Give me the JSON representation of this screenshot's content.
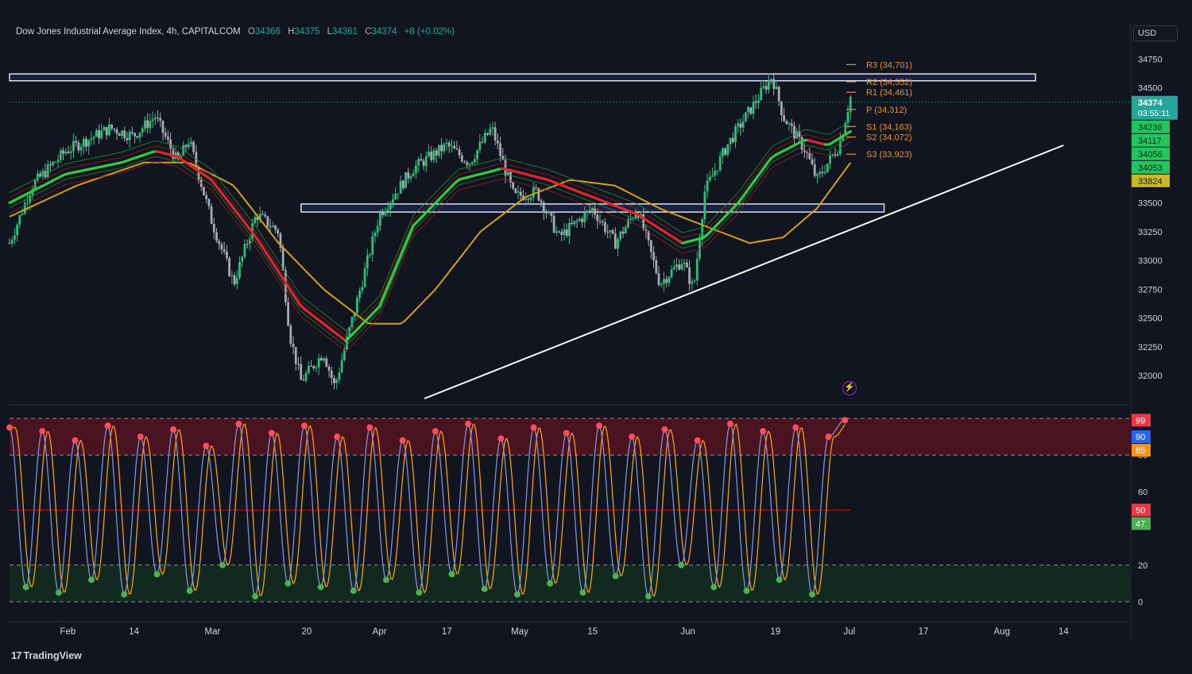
{
  "header": {
    "symbol": "Dow Jones Industrial Average Index, 4h, CAPITALCOM",
    "o_label": "O",
    "o_value": "34366",
    "h_label": "H",
    "h_value": "34375",
    "l_label": "L",
    "l_value": "34361",
    "c_label": "C",
    "c_value": "34374",
    "change": "+8 (+0.02%)"
  },
  "currency": "USD",
  "brand": "TradingView",
  "colors": {
    "background": "#111520",
    "ema_fast_green": "#2ecc40",
    "ema_fast_red": "#e0262c",
    "ema_slow": "#d4a017",
    "pivot": "#e8902a",
    "trendline": "#ffffff",
    "zone": "#1e2a5c",
    "stoch_k": "#7e8fd6",
    "stoch_d": "#f39c12"
  },
  "chart_data": [
    {
      "type": "candlestick",
      "title": "Dow Jones Industrial Average Index, 4h, CAPITALCOM",
      "timeframe": "4h",
      "x_tick_labels": [
        "Feb",
        "14",
        "Mar",
        "20",
        "Apr",
        "17",
        "May",
        "15",
        "Jun",
        "19",
        "Jul",
        "17",
        "Aug",
        "14"
      ],
      "y_tick_labels": [
        "32000",
        "32250",
        "32500",
        "32750",
        "33000",
        "33250",
        "33500",
        "34500",
        "34750"
      ],
      "ylim": [
        31800,
        35000
      ],
      "last_price": "34374",
      "countdown": "03:55:11",
      "price_path": [
        {
          "t": 0,
          "p": 33150
        },
        {
          "t": 0.02,
          "p": 33650
        },
        {
          "t": 0.05,
          "p": 33950
        },
        {
          "t": 0.07,
          "p": 34050
        },
        {
          "t": 0.09,
          "p": 34150
        },
        {
          "t": 0.11,
          "p": 34080
        },
        {
          "t": 0.13,
          "p": 34250
        },
        {
          "t": 0.15,
          "p": 33850
        },
        {
          "t": 0.16,
          "p": 34050
        },
        {
          "t": 0.18,
          "p": 33350
        },
        {
          "t": 0.2,
          "p": 32800
        },
        {
          "t": 0.22,
          "p": 33400
        },
        {
          "t": 0.24,
          "p": 33250
        },
        {
          "t": 0.25,
          "p": 32350
        },
        {
          "t": 0.26,
          "p": 31950
        },
        {
          "t": 0.28,
          "p": 32200
        },
        {
          "t": 0.29,
          "p": 31900
        },
        {
          "t": 0.31,
          "p": 32650
        },
        {
          "t": 0.33,
          "p": 33400
        },
        {
          "t": 0.36,
          "p": 33800
        },
        {
          "t": 0.39,
          "p": 34000
        },
        {
          "t": 0.41,
          "p": 33850
        },
        {
          "t": 0.43,
          "p": 34150
        },
        {
          "t": 0.45,
          "p": 33550
        },
        {
          "t": 0.47,
          "p": 33600
        },
        {
          "t": 0.49,
          "p": 33200
        },
        {
          "t": 0.52,
          "p": 33450
        },
        {
          "t": 0.54,
          "p": 33150
        },
        {
          "t": 0.56,
          "p": 33450
        },
        {
          "t": 0.58,
          "p": 32800
        },
        {
          "t": 0.6,
          "p": 33000
        },
        {
          "t": 0.61,
          "p": 32750
        },
        {
          "t": 0.62,
          "p": 33600
        },
        {
          "t": 0.64,
          "p": 34000
        },
        {
          "t": 0.66,
          "p": 34300
        },
        {
          "t": 0.68,
          "p": 34600
        },
        {
          "t": 0.69,
          "p": 34250
        },
        {
          "t": 0.71,
          "p": 33950
        },
        {
          "t": 0.72,
          "p": 33700
        },
        {
          "t": 0.74,
          "p": 34000
        },
        {
          "t": 0.75,
          "p": 34420
        }
      ],
      "ema_fast_path": [
        {
          "t": 0,
          "p": 33500
        },
        {
          "t": 0.05,
          "p": 33750
        },
        {
          "t": 0.1,
          "p": 33850
        },
        {
          "t": 0.13,
          "p": 33950
        },
        {
          "t": 0.15,
          "p": 33900
        },
        {
          "t": 0.18,
          "p": 33700
        },
        {
          "t": 0.22,
          "p": 33200
        },
        {
          "t": 0.26,
          "p": 32600
        },
        {
          "t": 0.3,
          "p": 32300
        },
        {
          "t": 0.33,
          "p": 32600
        },
        {
          "t": 0.36,
          "p": 33300
        },
        {
          "t": 0.4,
          "p": 33700
        },
        {
          "t": 0.44,
          "p": 33800
        },
        {
          "t": 0.48,
          "p": 33700
        },
        {
          "t": 0.52,
          "p": 33550
        },
        {
          "t": 0.56,
          "p": 33400
        },
        {
          "t": 0.6,
          "p": 33150
        },
        {
          "t": 0.62,
          "p": 33200
        },
        {
          "t": 0.65,
          "p": 33500
        },
        {
          "t": 0.68,
          "p": 33900
        },
        {
          "t": 0.71,
          "p": 34050
        },
        {
          "t": 0.73,
          "p": 34000
        },
        {
          "t": 0.75,
          "p": 34120
        }
      ],
      "ema_slow_path": [
        {
          "t": 0,
          "p": 33380
        },
        {
          "t": 0.06,
          "p": 33650
        },
        {
          "t": 0.12,
          "p": 33850
        },
        {
          "t": 0.16,
          "p": 33850
        },
        {
          "t": 0.2,
          "p": 33650
        },
        {
          "t": 0.24,
          "p": 33150
        },
        {
          "t": 0.28,
          "p": 32750
        },
        {
          "t": 0.32,
          "p": 32450
        },
        {
          "t": 0.35,
          "p": 32450
        },
        {
          "t": 0.38,
          "p": 32750
        },
        {
          "t": 0.42,
          "p": 33250
        },
        {
          "t": 0.46,
          "p": 33550
        },
        {
          "t": 0.5,
          "p": 33700
        },
        {
          "t": 0.54,
          "p": 33650
        },
        {
          "t": 0.58,
          "p": 33450
        },
        {
          "t": 0.62,
          "p": 33300
        },
        {
          "t": 0.66,
          "p": 33150
        },
        {
          "t": 0.69,
          "p": 33200
        },
        {
          "t": 0.72,
          "p": 33450
        },
        {
          "t": 0.75,
          "p": 33850
        }
      ],
      "trendline": {
        "from": {
          "t": 0.37,
          "p": 31800
        },
        "to": {
          "t": 0.94,
          "p": 34000
        }
      },
      "zones": [
        {
          "name": "resistance",
          "from_t": 0,
          "to_t": 0.915,
          "top": 34620,
          "bottom": 34560
        },
        {
          "name": "support",
          "from_t": 0.26,
          "to_t": 0.78,
          "top": 33490,
          "bottom": 33420
        }
      ],
      "pivots": [
        {
          "label": "R3 (34,701)",
          "value": 34701
        },
        {
          "label": "R2 (34,552)",
          "value": 34552
        },
        {
          "label": "R1 (34,461)",
          "value": 34461
        },
        {
          "label": "P (34,312)",
          "value": 34312
        },
        {
          "label": "S1 (34,163)",
          "value": 34163
        },
        {
          "label": "S2 (34,072)",
          "value": 34072
        },
        {
          "label": "S3 (33,923)",
          "value": 33923
        }
      ],
      "price_badges": [
        {
          "text": "34236",
          "value": 34236,
          "color": "#22c55e"
        },
        {
          "text": "34117",
          "value": 34117,
          "color": "#22c55e"
        },
        {
          "text": "34056",
          "value": 34056,
          "color": "#22c55e"
        },
        {
          "text": "34053",
          "value": 34053,
          "color": "#22c55e"
        },
        {
          "text": "33824",
          "value": 33824,
          "color": "#c9b82a"
        }
      ]
    },
    {
      "type": "line",
      "title": "",
      "y_tick_labels": [
        "0",
        "20",
        "60",
        "80"
      ],
      "ylim": [
        0,
        100
      ],
      "bands": [
        {
          "from": 80,
          "to": 100,
          "color": "#5c1420"
        },
        {
          "from": 0,
          "to": 20,
          "color": "#12301e"
        }
      ],
      "dashed_levels": [
        0,
        20,
        80,
        100
      ],
      "mid_level": 50,
      "badges": [
        {
          "text": "99",
          "value": 99,
          "color": "#f23645"
        },
        {
          "text": "90",
          "value": 90,
          "color": "#2962ff"
        },
        {
          "text": "85",
          "value": 85,
          "color": "#f7931a"
        },
        {
          "text": "50",
          "value": 50,
          "color": "#f23645"
        },
        {
          "text": "47",
          "value": 47,
          "color": "#4caf50"
        }
      ],
      "oscillation_peaks": [
        95,
        8,
        93,
        5,
        88,
        12,
        96,
        4,
        90,
        15,
        94,
        6,
        85,
        20,
        97,
        3,
        92,
        10,
        96,
        8,
        90,
        6,
        95,
        12,
        88,
        5,
        93,
        15,
        97,
        7,
        89,
        4,
        95,
        10,
        92,
        5,
        96,
        14,
        90,
        3,
        94,
        20,
        88,
        8,
        97,
        6,
        93,
        12,
        95,
        4,
        90,
        99
      ]
    }
  ]
}
